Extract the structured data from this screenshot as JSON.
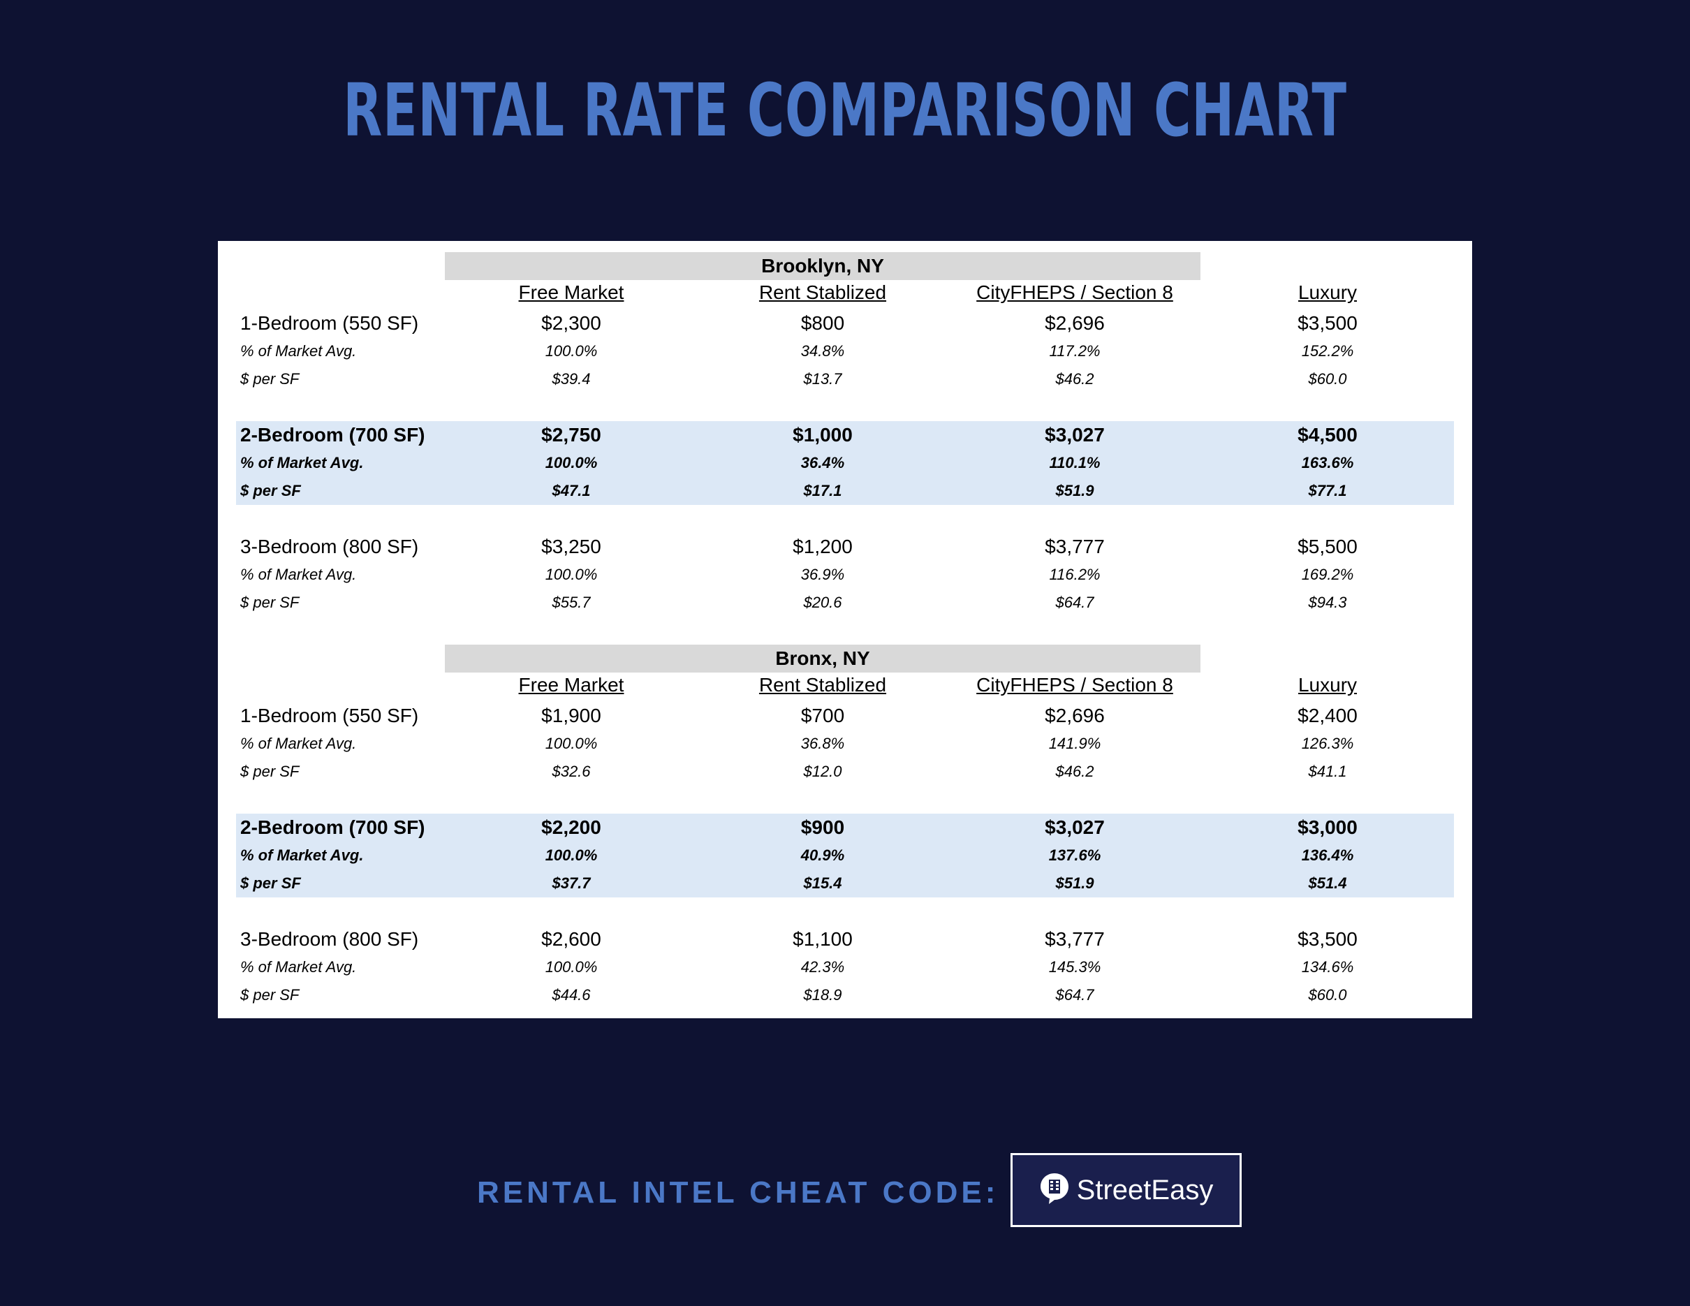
{
  "title": "RENTAL RATE COMPARISON CHART",
  "columns": [
    "Free Market",
    "Rent Stablized",
    "CityFHEPS / Section 8",
    "Luxury"
  ],
  "sections": [
    {
      "city": "Brooklyn, NY",
      "groups": [
        {
          "label": "1-Bedroom (550 SF)",
          "rent": [
            "$2,300",
            "$800",
            "$2,696",
            "$3,500"
          ],
          "pct_label": "% of Market Avg.",
          "pct": [
            "100.0%",
            "34.8%",
            "117.2%",
            "152.2%"
          ],
          "psf_label": "$ per SF",
          "psf": [
            "$39.4",
            "$13.7",
            "$46.2",
            "$60.0"
          ]
        },
        {
          "label": "2-Bedroom (700 SF)",
          "rent": [
            "$2,750",
            "$1,000",
            "$3,027",
            "$4,500"
          ],
          "pct_label": "% of Market Avg.",
          "pct": [
            "100.0%",
            "36.4%",
            "110.1%",
            "163.6%"
          ],
          "psf_label": "$ per SF",
          "psf": [
            "$47.1",
            "$17.1",
            "$51.9",
            "$77.1"
          ]
        },
        {
          "label": "3-Bedroom (800 SF)",
          "rent": [
            "$3,250",
            "$1,200",
            "$3,777",
            "$5,500"
          ],
          "pct_label": "% of Market Avg.",
          "pct": [
            "100.0%",
            "36.9%",
            "116.2%",
            "169.2%"
          ],
          "psf_label": "$ per SF",
          "psf": [
            "$55.7",
            "$20.6",
            "$64.7",
            "$94.3"
          ]
        }
      ]
    },
    {
      "city": "Bronx, NY",
      "groups": [
        {
          "label": "1-Bedroom (550 SF)",
          "rent": [
            "$1,900",
            "$700",
            "$2,696",
            "$2,400"
          ],
          "pct_label": "% of Market Avg.",
          "pct": [
            "100.0%",
            "36.8%",
            "141.9%",
            "126.3%"
          ],
          "psf_label": "$ per SF",
          "psf": [
            "$32.6",
            "$12.0",
            "$46.2",
            "$41.1"
          ]
        },
        {
          "label": "2-Bedroom (700 SF)",
          "rent": [
            "$2,200",
            "$900",
            "$3,027",
            "$3,000"
          ],
          "pct_label": "% of Market Avg.",
          "pct": [
            "100.0%",
            "40.9%",
            "137.6%",
            "136.4%"
          ],
          "psf_label": "$ per SF",
          "psf": [
            "$37.7",
            "$15.4",
            "$51.9",
            "$51.4"
          ]
        },
        {
          "label": "3-Bedroom (800 SF)",
          "rent": [
            "$2,600",
            "$1,100",
            "$3,777",
            "$3,500"
          ],
          "pct_label": "% of Market Avg.",
          "pct": [
            "100.0%",
            "42.3%",
            "145.3%",
            "134.6%"
          ],
          "psf_label": "$ per SF",
          "psf": [
            "$44.6",
            "$18.9",
            "$64.7",
            "$60.0"
          ]
        }
      ]
    }
  ],
  "footer": {
    "label": "RENTAL INTEL CHEAT CODE:",
    "brand": "StreetEasy",
    "brand_icon": "building-speech-bubble-icon"
  },
  "colors": {
    "background": "#0e1232",
    "accent": "#4b78c7",
    "band": "#dce8f6",
    "city_header": "#d9d9d9"
  }
}
